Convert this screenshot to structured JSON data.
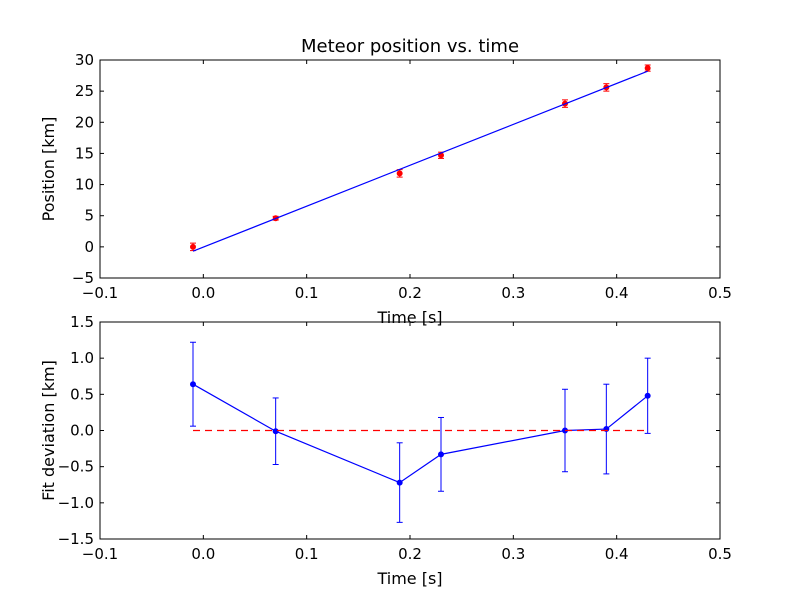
{
  "colors": {
    "fit_line": "#0000ff",
    "measurement": "#ff0000",
    "deviation": "#0000ff",
    "zero_line": "#ff0000",
    "frame": "#000000"
  },
  "chart_data": [
    {
      "type": "scatter",
      "title": "Meteor position vs. time",
      "xlabel": "Time [s]",
      "ylabel": "Position [km]",
      "xlim": [
        -0.1,
        0.5
      ],
      "ylim": [
        -5,
        30
      ],
      "xticks": [
        -0.1,
        0.0,
        0.1,
        0.2,
        0.3,
        0.4,
        0.5
      ],
      "xtick_labels": [
        "−0.1",
        "0.0",
        "0.1",
        "0.2",
        "0.3",
        "0.4",
        "0.5"
      ],
      "yticks": [
        -5,
        0,
        5,
        10,
        15,
        20,
        25,
        30
      ],
      "ytick_labels": [
        "−5",
        "0",
        "5",
        "10",
        "15",
        "20",
        "25",
        "30"
      ],
      "grid": false,
      "series": [
        {
          "kind": "errorbar-points",
          "x": [
            -0.01,
            0.07,
            0.19,
            0.23,
            0.35,
            0.39,
            0.43
          ],
          "y": [
            0.0,
            4.6,
            11.8,
            14.7,
            23.0,
            25.6,
            28.7
          ],
          "yerr": [
            0.6,
            0.3,
            0.6,
            0.5,
            0.6,
            0.6,
            0.5
          ]
        },
        {
          "kind": "fit-line",
          "x": [
            -0.01,
            0.43
          ],
          "y": [
            -0.7,
            28.2
          ]
        }
      ]
    },
    {
      "type": "line",
      "title": "",
      "xlabel": "Time [s]",
      "ylabel": "Fit deviation [km]",
      "xlim": [
        -0.1,
        0.5
      ],
      "ylim": [
        -1.5,
        1.5
      ],
      "xticks": [
        -0.1,
        0.0,
        0.1,
        0.2,
        0.3,
        0.4,
        0.5
      ],
      "xtick_labels": [
        "−0.1",
        "0.0",
        "0.1",
        "0.2",
        "0.3",
        "0.4",
        "0.5"
      ],
      "yticks": [
        -1.5,
        -1.0,
        -0.5,
        0.0,
        0.5,
        1.0,
        1.5
      ],
      "ytick_labels": [
        "−1.5",
        "−1.0",
        "−0.5",
        "0.0",
        "0.5",
        "1.0",
        "1.5"
      ],
      "grid": false,
      "series": [
        {
          "kind": "errorbar-line",
          "x": [
            -0.01,
            0.07,
            0.19,
            0.23,
            0.35,
            0.39,
            0.43
          ],
          "y": [
            0.64,
            -0.01,
            -0.72,
            -0.33,
            0.0,
            0.02,
            0.48
          ],
          "yerr": [
            0.58,
            0.46,
            0.55,
            0.51,
            0.57,
            0.62,
            0.52
          ]
        },
        {
          "kind": "zero-line",
          "x": [
            -0.01,
            0.43
          ],
          "y": [
            0.0,
            0.0
          ]
        }
      ]
    }
  ]
}
